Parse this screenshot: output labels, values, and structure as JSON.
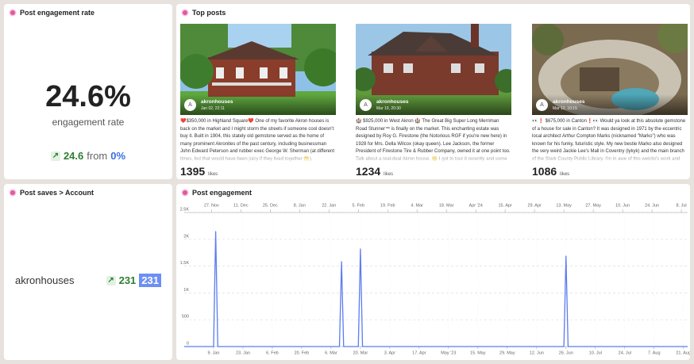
{
  "engagement_rate": {
    "title": "Post engagement rate",
    "value": "24.6%",
    "label": "engagement rate",
    "change": "24.6",
    "from": "from",
    "previous": "0%"
  },
  "top_posts": {
    "title": "Top posts",
    "posts": [
      {
        "avatar": "A",
        "account": "akronhouses",
        "date": "Jan 02, 22:11",
        "caption": "❤️$350,000 in Highland Square❤️ One of my favorite Akron houses is back on the market and I might storm the streets if someone cool doesn't buy it. Built in 1904, this stately old gemstone served as the home of many prominent Akronites of the past century, including businessman John Edward Peterson and rubber exec George W. Sherman (at different times, but that would have been juicy if they lived together 🤭). Highlights:",
        "likes": 1395,
        "likes_label": "likes"
      },
      {
        "avatar": "A",
        "account": "akronhouses",
        "date": "Mar 19, 20:30",
        "caption": "🏰 $925,000 in West Akron 🏰 The Great Big Super Long Merriman Road Stunner™ is finally on the market. This enchanting estate was designed by Roy G. Firestone (the Notorious RGF if you're new here) in 1928 for Mrs. Della Wilcox (okay queen). Lee Jackson, the former President of Firestone Tire & Rubber Company, owned it at one point too. Talk about a real-deal Akron house. 😊 I got to tour it recently and some unexpected highlights",
        "likes": 1234,
        "likes_label": "likes"
      },
      {
        "avatar": "A",
        "account": "akronhouses",
        "date": "Mar 12, 10:15",
        "caption": "👀❗ $675,000 in Canton❗👀 Would ya look at this absolute gemstone of a house for sale in Canton? It was designed in 1971 by the eccentric local architect Arthur Compton Marks (nicknamed \"Marko\") who was known for his funky, futuristic style. My new bestie Marko also designed the very weird Jackie Lee's Mall in Coventry (lykyk) and the main branch of the Stark County Public Library. I'm in awe of this weirdo's work and the fact that",
        "likes": 1086,
        "likes_label": "likes"
      }
    ]
  },
  "post_saves": {
    "title": "Post saves > Account",
    "account": "akronhouses",
    "change": 231,
    "value": 231
  },
  "chart_data": {
    "type": "line",
    "title": "Post engagement",
    "color": "#5b7cf0",
    "x": [
      "2022-12-26",
      "2023-01-09",
      "2023-01-10",
      "2023-01-11",
      "2023-03-10",
      "2023-03-11",
      "2023-03-12",
      "2023-03-19",
      "2023-03-20",
      "2023-03-21",
      "2023-06-25",
      "2023-06-26",
      "2023-06-27",
      "2023-08-23"
    ],
    "values": [
      0,
      0,
      2145,
      0,
      0,
      1583,
      0,
      0,
      1820,
      0,
      0,
      1686,
      0,
      0
    ],
    "xlim": [
      "2022-12-26",
      "2023-08-23"
    ],
    "xticks": [
      {
        "value": "2023-01-09",
        "label": "9. Jan"
      },
      {
        "value": "2023-01-23",
        "label": "23. Jan"
      },
      {
        "value": "2023-02-06",
        "label": "6. Feb"
      },
      {
        "value": "2023-02-20",
        "label": "20. Feb"
      },
      {
        "value": "2023-03-06",
        "label": "6. Mar"
      },
      {
        "value": "2023-03-20",
        "label": "20. Mar"
      },
      {
        "value": "2023-04-03",
        "label": "3. Apr"
      },
      {
        "value": "2023-04-17",
        "label": "17. Apr"
      },
      {
        "value": "2023-05-01",
        "label": "May '23"
      },
      {
        "value": "2023-05-15",
        "label": "15. May"
      },
      {
        "value": "2023-05-29",
        "label": "29. May"
      },
      {
        "value": "2023-06-12",
        "label": "12. Jun"
      },
      {
        "value": "2023-06-26",
        "label": "26. Jun"
      },
      {
        "value": "2023-07-10",
        "label": "10. Jul"
      },
      {
        "value": "2023-07-24",
        "label": "24. Jul"
      },
      {
        "value": "2023-08-07",
        "label": "7. Aug"
      },
      {
        "value": "2023-08-21",
        "label": "21. Aug"
      }
    ],
    "x2lim": [
      "2023-11-14",
      "2024-07-11"
    ],
    "x2ticks": [
      {
        "value": "2023-11-27",
        "label": "27. Nov"
      },
      {
        "value": "2023-12-11",
        "label": "11. Dec"
      },
      {
        "value": "2023-12-25",
        "label": "25. Dec"
      },
      {
        "value": "2024-01-08",
        "label": "8. Jan"
      },
      {
        "value": "2024-01-22",
        "label": "22. Jan"
      },
      {
        "value": "2024-02-05",
        "label": "5. Feb"
      },
      {
        "value": "2024-02-19",
        "label": "19. Feb"
      },
      {
        "value": "2024-03-04",
        "label": "4. Mar"
      },
      {
        "value": "2024-03-18",
        "label": "18. Mar"
      },
      {
        "value": "2024-04-01",
        "label": "Apr '24"
      },
      {
        "value": "2024-04-15",
        "label": "15. Apr"
      },
      {
        "value": "2024-04-29",
        "label": "29. Apr"
      },
      {
        "value": "2024-05-13",
        "label": "13. May"
      },
      {
        "value": "2024-05-27",
        "label": "27. May"
      },
      {
        "value": "2024-06-10",
        "label": "10. Jun"
      },
      {
        "value": "2024-06-24",
        "label": "24. Jun"
      },
      {
        "value": "2024-07-08",
        "label": "8. Jul"
      }
    ],
    "ylim": [
      0,
      2500
    ],
    "yticks": [
      0,
      500,
      {
        "value": 1000,
        "label": "1K"
      },
      {
        "value": 1500,
        "label": "1.5K"
      },
      {
        "value": 2000,
        "label": "2K"
      },
      {
        "value": 2500,
        "label": "2.5K"
      }
    ],
    "grid": true
  }
}
